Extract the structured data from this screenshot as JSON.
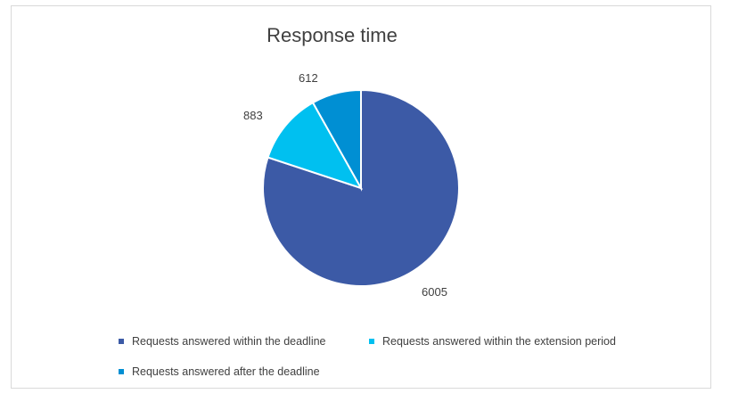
{
  "chart_data": {
    "type": "pie",
    "title": "Response time",
    "categories": [
      "Requests answered within the deadline",
      "Requests answered within the extension period",
      "Requests answered after the deadline"
    ],
    "values": [
      6005,
      883,
      612
    ],
    "colors": [
      "#3c5aa6",
      "#00c0f0",
      "#008fd3"
    ],
    "legend_position": "bottom",
    "start_angle_deg": 0,
    "direction": "clockwise"
  }
}
